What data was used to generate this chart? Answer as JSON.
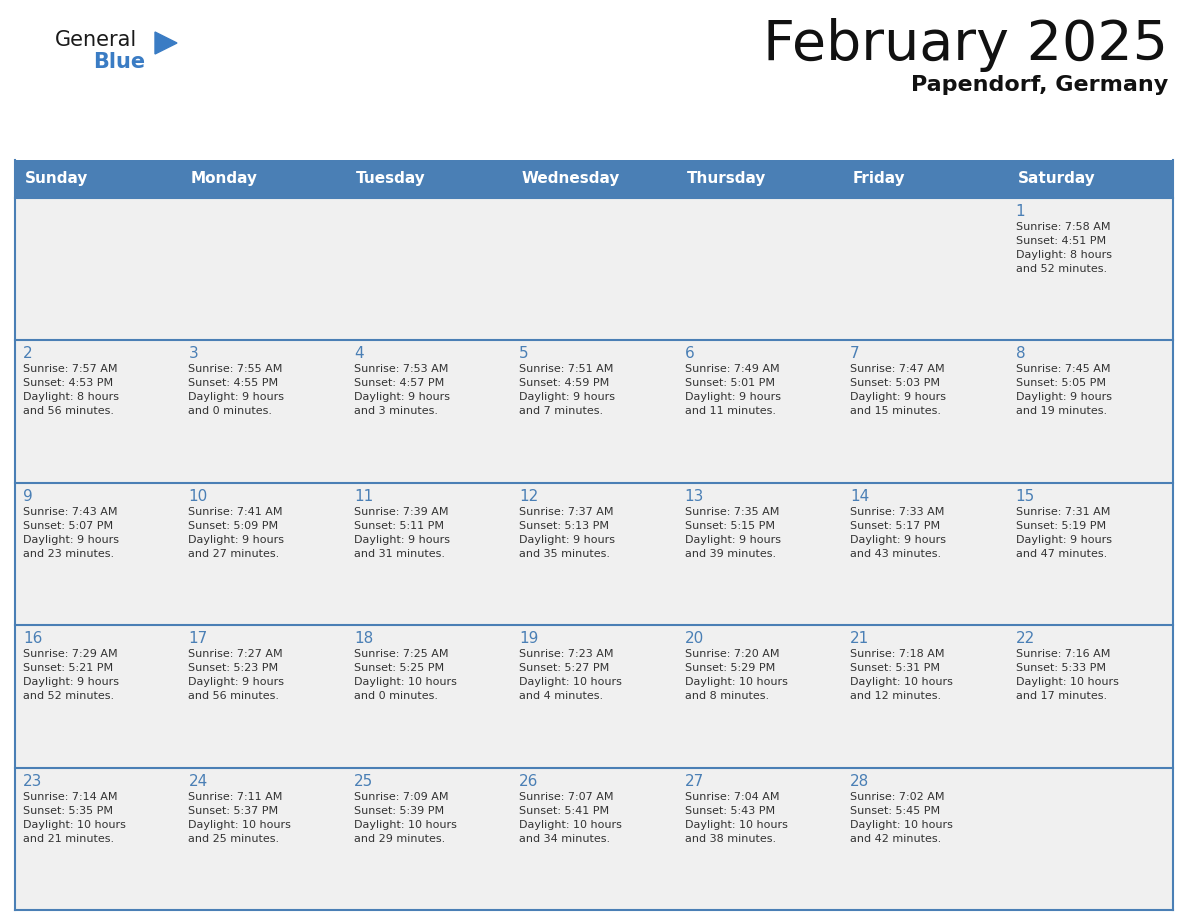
{
  "title": "February 2025",
  "subtitle": "Papendorf, Germany",
  "days_of_week": [
    "Sunday",
    "Monday",
    "Tuesday",
    "Wednesday",
    "Thursday",
    "Friday",
    "Saturday"
  ],
  "header_bg": "#4a7fb5",
  "header_text_color": "#ffffff",
  "cell_bg_light": "#f0f0f0",
  "day_number_color": "#4a7fb5",
  "text_color": "#333333",
  "border_color": "#4a7fb5",
  "logo_text1_color": "#1a1a1a",
  "logo_text2_color": "#3a7cc4",
  "logo_triangle_color": "#3a7cc4",
  "calendar_data": [
    [
      null,
      null,
      null,
      null,
      null,
      null,
      {
        "day": 1,
        "sunrise": "7:58 AM",
        "sunset": "4:51 PM",
        "daylight": "8 hours and 52 minutes"
      }
    ],
    [
      {
        "day": 2,
        "sunrise": "7:57 AM",
        "sunset": "4:53 PM",
        "daylight": "8 hours and 56 minutes"
      },
      {
        "day": 3,
        "sunrise": "7:55 AM",
        "sunset": "4:55 PM",
        "daylight": "9 hours and 0 minutes"
      },
      {
        "day": 4,
        "sunrise": "7:53 AM",
        "sunset": "4:57 PM",
        "daylight": "9 hours and 3 minutes"
      },
      {
        "day": 5,
        "sunrise": "7:51 AM",
        "sunset": "4:59 PM",
        "daylight": "9 hours and 7 minutes"
      },
      {
        "day": 6,
        "sunrise": "7:49 AM",
        "sunset": "5:01 PM",
        "daylight": "9 hours and 11 minutes"
      },
      {
        "day": 7,
        "sunrise": "7:47 AM",
        "sunset": "5:03 PM",
        "daylight": "9 hours and 15 minutes"
      },
      {
        "day": 8,
        "sunrise": "7:45 AM",
        "sunset": "5:05 PM",
        "daylight": "9 hours and 19 minutes"
      }
    ],
    [
      {
        "day": 9,
        "sunrise": "7:43 AM",
        "sunset": "5:07 PM",
        "daylight": "9 hours and 23 minutes"
      },
      {
        "day": 10,
        "sunrise": "7:41 AM",
        "sunset": "5:09 PM",
        "daylight": "9 hours and 27 minutes"
      },
      {
        "day": 11,
        "sunrise": "7:39 AM",
        "sunset": "5:11 PM",
        "daylight": "9 hours and 31 minutes"
      },
      {
        "day": 12,
        "sunrise": "7:37 AM",
        "sunset": "5:13 PM",
        "daylight": "9 hours and 35 minutes"
      },
      {
        "day": 13,
        "sunrise": "7:35 AM",
        "sunset": "5:15 PM",
        "daylight": "9 hours and 39 minutes"
      },
      {
        "day": 14,
        "sunrise": "7:33 AM",
        "sunset": "5:17 PM",
        "daylight": "9 hours and 43 minutes"
      },
      {
        "day": 15,
        "sunrise": "7:31 AM",
        "sunset": "5:19 PM",
        "daylight": "9 hours and 47 minutes"
      }
    ],
    [
      {
        "day": 16,
        "sunrise": "7:29 AM",
        "sunset": "5:21 PM",
        "daylight": "9 hours and 52 minutes"
      },
      {
        "day": 17,
        "sunrise": "7:27 AM",
        "sunset": "5:23 PM",
        "daylight": "9 hours and 56 minutes"
      },
      {
        "day": 18,
        "sunrise": "7:25 AM",
        "sunset": "5:25 PM",
        "daylight": "10 hours and 0 minutes"
      },
      {
        "day": 19,
        "sunrise": "7:23 AM",
        "sunset": "5:27 PM",
        "daylight": "10 hours and 4 minutes"
      },
      {
        "day": 20,
        "sunrise": "7:20 AM",
        "sunset": "5:29 PM",
        "daylight": "10 hours and 8 minutes"
      },
      {
        "day": 21,
        "sunrise": "7:18 AM",
        "sunset": "5:31 PM",
        "daylight": "10 hours and 12 minutes"
      },
      {
        "day": 22,
        "sunrise": "7:16 AM",
        "sunset": "5:33 PM",
        "daylight": "10 hours and 17 minutes"
      }
    ],
    [
      {
        "day": 23,
        "sunrise": "7:14 AM",
        "sunset": "5:35 PM",
        "daylight": "10 hours and 21 minutes"
      },
      {
        "day": 24,
        "sunrise": "7:11 AM",
        "sunset": "5:37 PM",
        "daylight": "10 hours and 25 minutes"
      },
      {
        "day": 25,
        "sunrise": "7:09 AM",
        "sunset": "5:39 PM",
        "daylight": "10 hours and 29 minutes"
      },
      {
        "day": 26,
        "sunrise": "7:07 AM",
        "sunset": "5:41 PM",
        "daylight": "10 hours and 34 minutes"
      },
      {
        "day": 27,
        "sunrise": "7:04 AM",
        "sunset": "5:43 PM",
        "daylight": "10 hours and 38 minutes"
      },
      {
        "day": 28,
        "sunrise": "7:02 AM",
        "sunset": "5:45 PM",
        "daylight": "10 hours and 42 minutes"
      },
      null
    ]
  ]
}
